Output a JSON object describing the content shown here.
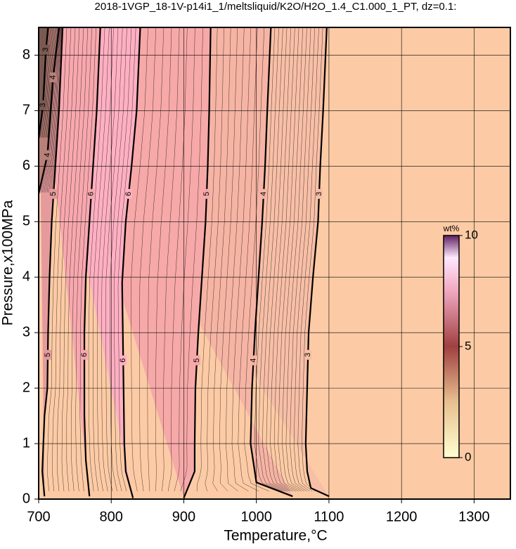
{
  "chart_data": {
    "type": "contour",
    "title": "2018-1VGP_18-1V-p14i1_1/meltsliquid/K2O/H2O_1.4_C1.000_1_PT, dz=0.1:",
    "x_label": "Temperature,°C",
    "y_label": "Pressure,x100MPa",
    "xlim": [
      700,
      1350
    ],
    "xticks": [
      700,
      800,
      900,
      1000,
      1100,
      1200,
      1300
    ],
    "ylim": [
      0,
      8.5
    ],
    "yticks": [
      0,
      1,
      2,
      3,
      4,
      5,
      6,
      7,
      8
    ],
    "grid": true,
    "background": "#fccba5",
    "contours": [
      {
        "level": 3,
        "fill": "#f7bfa6",
        "x": [
          1100,
          1075,
          1070,
          1068,
          1070,
          1072,
          1078,
          1085,
          1088,
          1092,
          1097
        ],
        "y": [
          0.05,
          0.2,
          0.5,
          1,
          2,
          3,
          4,
          5,
          6,
          7,
          8.5
        ]
      },
      {
        "level": 4,
        "fill": "#f6b4a4",
        "x": [
          1050,
          1000,
          992,
          994,
          998,
          1003,
          1008,
          1012,
          1015,
          1020
        ],
        "y": [
          0.05,
          0.3,
          1,
          2,
          3,
          4,
          5,
          6,
          7,
          8.5
        ]
      },
      {
        "level": 5,
        "fill": "#f6a9a8",
        "x": [
          900,
          915,
          915,
          916,
          920,
          925,
          930,
          933,
          935,
          937
        ],
        "y": [
          0.02,
          0.5,
          1,
          2,
          3,
          4,
          5,
          6,
          7,
          8.5
        ]
      },
      {
        "level": 6,
        "fill": "#ffb0c2",
        "x": [
          830,
          820,
          818,
          817,
          816,
          815,
          820,
          828,
          835,
          840
        ],
        "y": [
          0.02,
          0.5,
          1,
          2,
          3,
          3.9,
          5,
          6,
          7,
          8.5
        ]
      },
      {
        "level": 6,
        "fill": "#f7a8ae",
        "x": [
          770,
          765,
          763,
          763,
          765,
          770,
          775,
          780,
          785
        ],
        "y": [
          0.05,
          0.7,
          1.5,
          3,
          4,
          5,
          6,
          7,
          8.5
        ]
      },
      {
        "level": 5,
        "fill": "#e59a9c",
        "x": [
          708,
          705,
          708,
          712,
          713,
          715,
          718,
          723,
          728,
          733
        ],
        "y": [
          0.05,
          0.5,
          1.5,
          2,
          3,
          4,
          5,
          6,
          7,
          8.5
        ]
      },
      {
        "level": 4,
        "fill": "#b88078",
        "x": [
          700,
          712,
          720,
          728
        ],
        "y": [
          5.5,
          6.2,
          7.6,
          8.5
        ]
      },
      {
        "level": 3,
        "fill": "#7a5a50",
        "x": [
          700,
          706,
          710,
          713
        ],
        "y": [
          6.5,
          7.1,
          8.1,
          8.5
        ]
      }
    ],
    "colorbar": {
      "label": "wt%",
      "clim": [
        0,
        10
      ],
      "ticks": [
        0,
        5,
        10
      ]
    }
  }
}
